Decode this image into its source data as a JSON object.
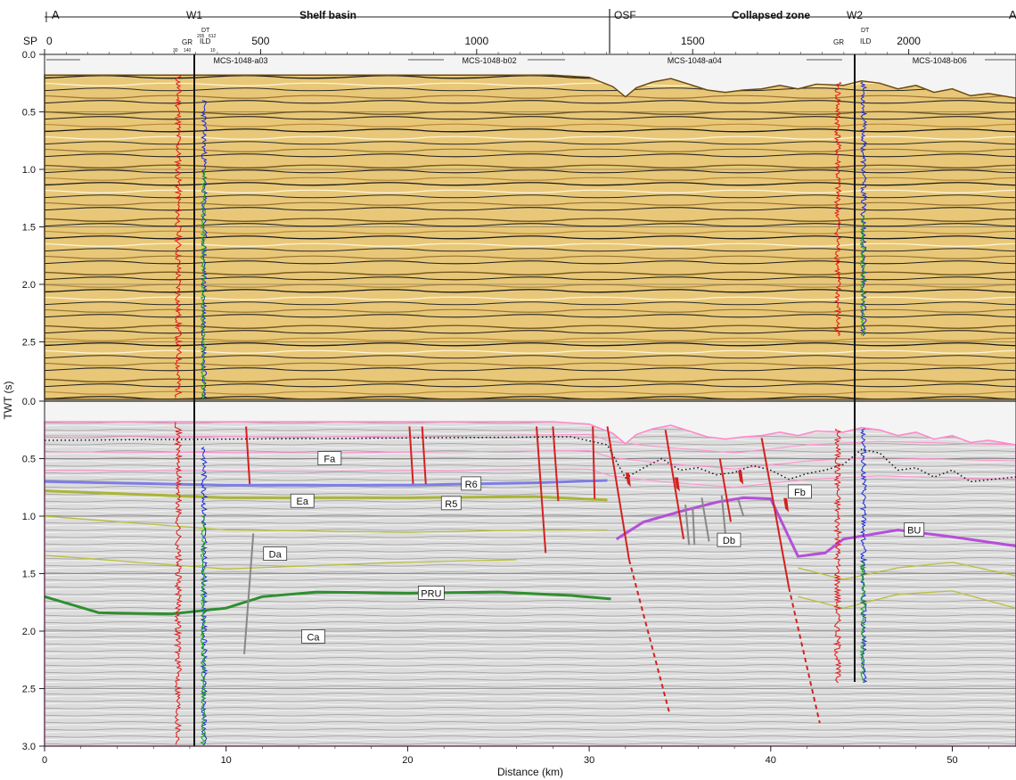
{
  "profile": {
    "start_label": "A",
    "end_label": "A",
    "wells": [
      {
        "name": "W1",
        "km": 8.1
      },
      {
        "name": "W2",
        "km": 44.5
      }
    ],
    "zones": [
      {
        "label": "Shelf basin",
        "from_km": 0,
        "to_km": 31.2
      },
      {
        "label": "Collapsed zone",
        "from_km": 31.2,
        "to_km": 53.5
      }
    ],
    "osf_label": "OSF",
    "osf_km": 31.2
  },
  "sp_axis": {
    "prefix": "SP",
    "ticks": [
      {
        "sp": "0",
        "km": 0
      },
      {
        "sp": "500",
        "km": 11.9
      },
      {
        "sp": "1000",
        "km": 23.8
      },
      {
        "sp": "1500",
        "km": 35.7
      },
      {
        "sp": "2000",
        "km": 47.6
      }
    ]
  },
  "lines": [
    {
      "name": "MCS-1048-a03",
      "label_km": 10.8
    },
    {
      "name": "MCS-1048-b02",
      "label_km": 24.5
    },
    {
      "name": "MCS-1048-a04",
      "label_km": 35.8
    },
    {
      "name": "MCS-1048-b06",
      "label_km": 49.3
    }
  ],
  "log_labels": {
    "gr": "GR",
    "dt": "DT",
    "ild": "ILD",
    "gr_min": "30",
    "gr_max": "140",
    "dt_min": "205",
    "dt_max": "612",
    "ild_max": "10"
  },
  "y_axis": {
    "label": "TWT (s)",
    "ticks": [
      "0.0",
      "0.5",
      "1.0",
      "1.5",
      "2.0",
      "2.5"
    ],
    "last_tick": "3.0",
    "range": [
      0,
      3
    ]
  },
  "x_axis": {
    "label": "Distance (km)",
    "ticks": [
      "0",
      "10",
      "20",
      "30",
      "40",
      "50"
    ],
    "range": [
      0,
      53.5
    ]
  },
  "horizons": [
    {
      "name": "R6",
      "label_km": 23.5,
      "label_twt": 0.72,
      "color": "#7d7de8",
      "points": [
        [
          0,
          0.7
        ],
        [
          10,
          0.73
        ],
        [
          20,
          0.73
        ],
        [
          27,
          0.71
        ],
        [
          31,
          0.69
        ]
      ]
    },
    {
      "name": "R5",
      "label_km": 22.4,
      "label_twt": 0.89,
      "color": "#aab535",
      "points": [
        [
          0,
          0.78
        ],
        [
          5,
          0.81
        ],
        [
          10,
          0.84
        ],
        [
          20,
          0.84
        ],
        [
          27,
          0.83
        ],
        [
          31,
          0.86
        ]
      ]
    },
    {
      "name": "PRU",
      "label_km": 21.3,
      "label_twt": 1.67,
      "color": "#2f8f2f",
      "points": [
        [
          0,
          1.7
        ],
        [
          3,
          1.84
        ],
        [
          7,
          1.85
        ],
        [
          10,
          1.8
        ],
        [
          12,
          1.7
        ],
        [
          15,
          1.66
        ],
        [
          20,
          1.67
        ],
        [
          25,
          1.66
        ],
        [
          29,
          1.69
        ],
        [
          31.2,
          1.72
        ]
      ]
    },
    {
      "name": "BU",
      "label_km": 47.9,
      "label_twt": 1.12,
      "color": "#b54fd8",
      "points": [
        [
          31.5,
          1.2
        ],
        [
          33,
          1.05
        ],
        [
          35,
          0.96
        ],
        [
          37,
          0.88
        ],
        [
          38.5,
          0.84
        ],
        [
          40,
          0.85
        ],
        [
          41.5,
          1.35
        ],
        [
          43,
          1.32
        ],
        [
          44,
          1.2
        ],
        [
          47,
          1.12
        ],
        [
          50,
          1.18
        ],
        [
          53.5,
          1.26
        ]
      ]
    }
  ],
  "units": [
    {
      "name": "Fa",
      "km": 15.7,
      "twt": 0.5
    },
    {
      "name": "Ea",
      "km": 14.2,
      "twt": 0.87
    },
    {
      "name": "Da",
      "km": 12.7,
      "twt": 1.33
    },
    {
      "name": "Ca",
      "km": 14.8,
      "twt": 2.05
    },
    {
      "name": "Db",
      "km": 37.7,
      "twt": 1.21
    },
    {
      "name": "Fb",
      "km": 41.6,
      "twt": 0.79
    }
  ]
}
